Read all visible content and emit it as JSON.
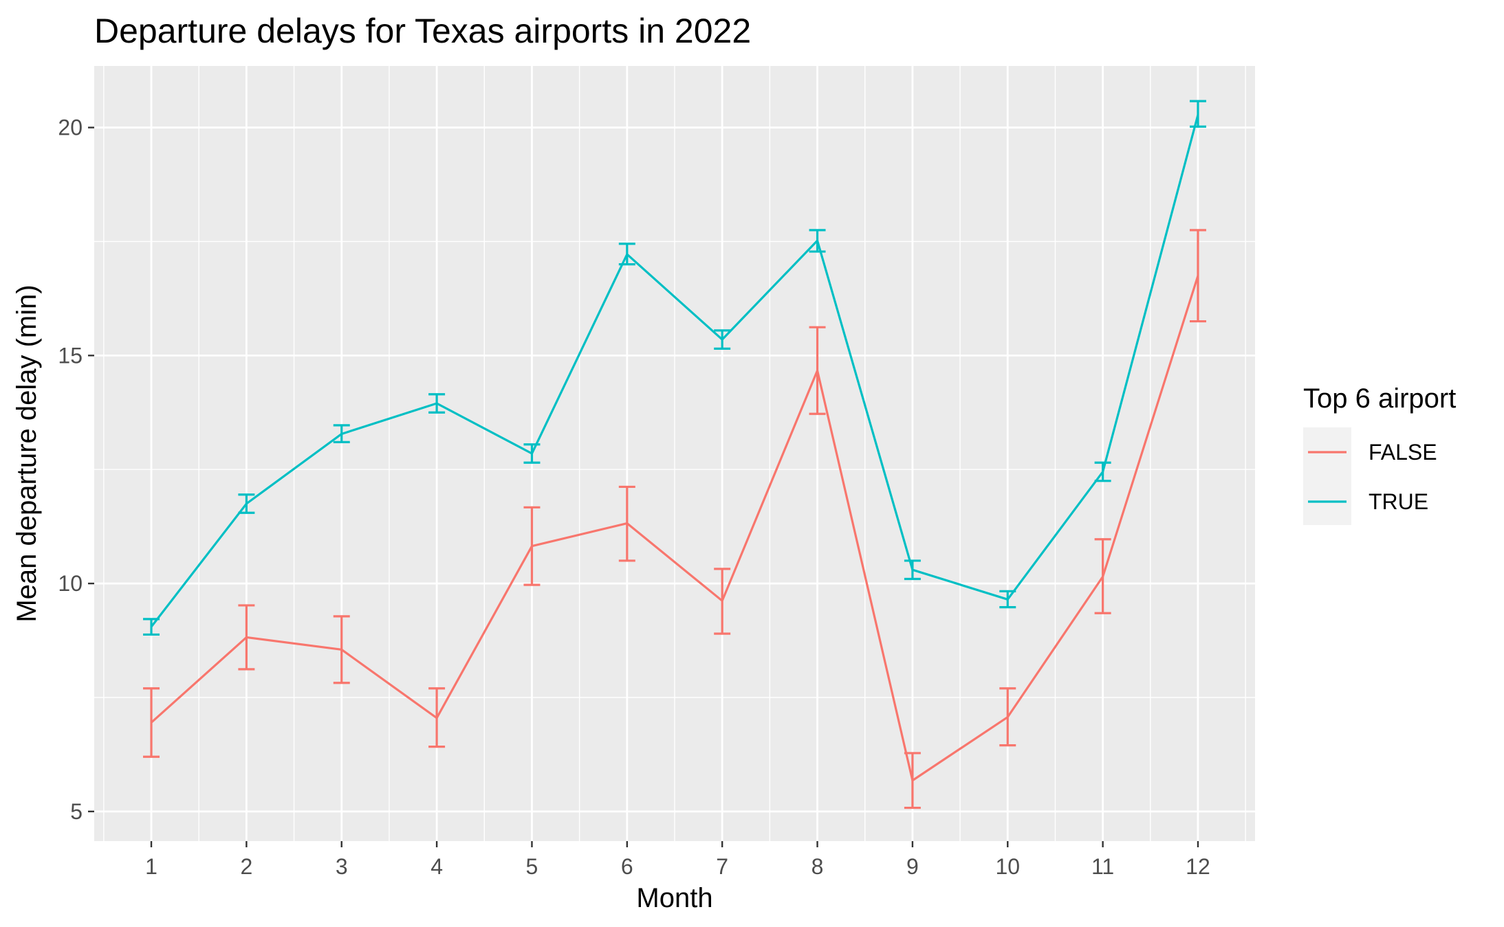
{
  "chart_data": {
    "type": "line",
    "title": "Departure delays for Texas airports in 2022",
    "xlabel": "Month",
    "ylabel": "Mean departure delay (min)",
    "categories": [
      "1",
      "2",
      "3",
      "4",
      "5",
      "6",
      "7",
      "8",
      "9",
      "10",
      "11",
      "12"
    ],
    "y_ticks": [
      "5",
      "10",
      "15",
      "20"
    ],
    "ylim": [
      4.35,
      21.35
    ],
    "grid": true,
    "error_bars": true,
    "legend": {
      "title": "Top 6 airport",
      "position": "right"
    },
    "series": [
      {
        "name": "FALSE",
        "color": "#F8766D",
        "values": [
          6.95,
          8.82,
          8.55,
          7.05,
          10.82,
          11.32,
          9.62,
          14.67,
          5.68,
          7.07,
          10.15,
          16.75
        ],
        "lower": [
          6.2,
          8.12,
          7.82,
          6.42,
          9.97,
          10.5,
          8.9,
          13.72,
          5.08,
          6.45,
          9.35,
          15.75
        ],
        "upper": [
          7.7,
          9.52,
          9.28,
          7.7,
          11.67,
          12.12,
          10.32,
          15.62,
          6.28,
          7.7,
          10.97,
          17.75
        ]
      },
      {
        "name": "TRUE",
        "color": "#00BFC4",
        "values": [
          9.05,
          11.75,
          13.28,
          13.95,
          12.85,
          17.22,
          15.35,
          17.52,
          10.3,
          9.65,
          12.45,
          20.28
        ],
        "lower": [
          8.88,
          11.55,
          13.1,
          13.75,
          12.65,
          17.0,
          15.15,
          17.28,
          10.1,
          9.48,
          12.25,
          20.02
        ],
        "upper": [
          9.22,
          11.95,
          13.47,
          14.15,
          13.05,
          17.45,
          15.55,
          17.75,
          10.5,
          9.83,
          12.65,
          20.58
        ]
      }
    ]
  }
}
